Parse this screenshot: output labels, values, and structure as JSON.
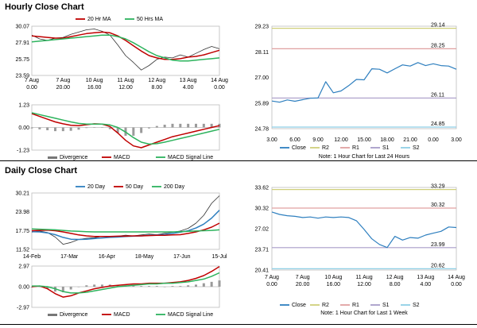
{
  "sections": {
    "hourly_title": "Hourly Close Chart",
    "daily_title": "Daily Close Chart"
  },
  "colors": {
    "price": "#333333",
    "ma_short": "#c00000",
    "ma_long": "#2db35d",
    "blue": "#2e7fbf",
    "r2": "#cfcf7a",
    "r1": "#e0a0a0",
    "s1": "#a89cc8",
    "s2": "#8ecfe6"
  },
  "chart_data": [
    {
      "id": "hourly_price",
      "type": "line",
      "x_labels": [
        [
          "7 Aug",
          "0.00"
        ],
        [
          "7 Aug",
          "20.00"
        ],
        [
          "10 Aug",
          "16.00"
        ],
        [
          "11 Aug",
          "12.00"
        ],
        [
          "12 Aug",
          "8.00"
        ],
        [
          "13 Aug",
          "4.00"
        ],
        [
          "14 Aug",
          "0.00"
        ]
      ],
      "y_ticks": [
        "30.07",
        "27.91",
        "25.75",
        "23.59"
      ],
      "ylim": [
        23.59,
        30.07
      ],
      "legend": [
        "20 Hr MA",
        "50 Hrs MA"
      ],
      "series": [
        {
          "name": "",
          "role": "price",
          "values": [
            28.9,
            28.4,
            28.2,
            28.5,
            28.6,
            29.0,
            29.3,
            29.6,
            29.7,
            29.4,
            28.9,
            27.6,
            26.2,
            25.3,
            24.3,
            24.9,
            25.7,
            26.0,
            25.9,
            26.3,
            26.0,
            26.5,
            27.0,
            27.4,
            27.1
          ]
        },
        {
          "name": "20 Hr MA",
          "role": "ma_short",
          "values": [
            28.8,
            28.7,
            28.6,
            28.5,
            28.5,
            28.7,
            28.9,
            29.1,
            29.2,
            29.3,
            29.2,
            28.8,
            28.2,
            27.5,
            26.8,
            26.2,
            25.9,
            25.7,
            25.7,
            25.8,
            26.0,
            26.1,
            26.3,
            26.6,
            26.9
          ]
        },
        {
          "name": "50 Hrs MA",
          "role": "ma_long",
          "values": [
            28.0,
            28.1,
            28.2,
            28.3,
            28.4,
            28.5,
            28.6,
            28.7,
            28.8,
            28.9,
            28.9,
            28.7,
            28.4,
            27.9,
            27.3,
            26.7,
            26.2,
            25.9,
            25.6,
            25.5,
            25.5,
            25.6,
            25.7,
            25.8,
            25.9
          ]
        }
      ]
    },
    {
      "id": "hourly_macd",
      "type": "line",
      "y_ticks": [
        "1.23",
        "0.00",
        "-1.23"
      ],
      "ylim": [
        -1.23,
        1.23
      ],
      "legend": [
        "Divergence",
        "MACD",
        "MACD Signal Line"
      ],
      "series": [
        {
          "name": "MACD",
          "role": "ma_short",
          "values": [
            0.75,
            0.6,
            0.45,
            0.3,
            0.2,
            0.12,
            0.1,
            0.15,
            0.2,
            0.18,
            0.05,
            -0.3,
            -0.7,
            -1.0,
            -1.1,
            -0.95,
            -0.8,
            -0.65,
            -0.5,
            -0.4,
            -0.3,
            -0.2,
            -0.1,
            0.0,
            0.1
          ]
        },
        {
          "name": "MACD Signal Line",
          "role": "ma_long",
          "values": [
            0.8,
            0.7,
            0.6,
            0.5,
            0.4,
            0.3,
            0.22,
            0.18,
            0.18,
            0.18,
            0.14,
            0.0,
            -0.25,
            -0.55,
            -0.8,
            -0.9,
            -0.88,
            -0.8,
            -0.7,
            -0.6,
            -0.5,
            -0.4,
            -0.3,
            -0.2,
            -0.1
          ]
        },
        {
          "name": "Divergence",
          "role": "bars",
          "values": [
            -0.05,
            -0.1,
            -0.15,
            -0.2,
            -0.2,
            -0.18,
            -0.12,
            -0.03,
            0.02,
            0.0,
            -0.09,
            -0.3,
            -0.45,
            -0.45,
            -0.3,
            -0.05,
            0.08,
            0.15,
            0.2,
            0.2,
            0.2,
            0.2,
            0.2,
            0.2,
            0.2
          ]
        }
      ]
    },
    {
      "id": "hourly_24h",
      "type": "line",
      "x_labels": [
        "3.00",
        "6.00",
        "9.00",
        "12.00",
        "15.00",
        "18.00",
        "21.00",
        "0.00",
        "3.00"
      ],
      "y_ticks": [
        "29.23",
        "28.11",
        "27.00",
        "25.89",
        "24.78"
      ],
      "ylim": [
        24.78,
        29.23
      ],
      "levels": [
        {
          "name": "R2",
          "value": 29.14,
          "label": "29.14",
          "role": "r2"
        },
        {
          "name": "R1",
          "value": 28.25,
          "label": "28.25",
          "role": "r1"
        },
        {
          "name": "S1",
          "value": 26.11,
          "label": "26.11",
          "role": "s1"
        },
        {
          "name": "S2",
          "value": 24.85,
          "label": "24.85",
          "role": "s2"
        }
      ],
      "legend": [
        "Close",
        "R2",
        "R1",
        "S1",
        "S2"
      ],
      "note": "Note: 1 Hour Chart for Last 24 Hours",
      "series": [
        {
          "name": "Close",
          "role": "blue",
          "values": [
            25.98,
            25.93,
            26.03,
            25.97,
            26.04,
            26.1,
            26.11,
            26.82,
            26.34,
            26.42,
            26.65,
            26.92,
            26.9,
            27.38,
            27.36,
            27.2,
            27.38,
            27.55,
            27.5,
            27.65,
            27.52,
            27.6,
            27.52,
            27.5,
            27.36
          ]
        }
      ]
    },
    {
      "id": "daily_price",
      "type": "line",
      "x_labels": [
        "14-Feb",
        "17-Mar",
        "16-Apr",
        "18-May",
        "17-Jun",
        "15-Jul"
      ],
      "y_ticks": [
        "30.21",
        "23.98",
        "17.75",
        "11.52"
      ],
      "ylim": [
        11.52,
        30.21
      ],
      "legend": [
        "20 Day",
        "50 Day",
        "200 Day"
      ],
      "series": [
        {
          "name": "",
          "role": "price",
          "values": [
            17.2,
            17.6,
            17.1,
            15.6,
            13.2,
            13.8,
            14.8,
            15.2,
            15.4,
            15.8,
            15.6,
            15.9,
            16.2,
            16.0,
            16.3,
            16.6,
            16.4,
            16.9,
            17.2,
            17.6,
            18.5,
            20.2,
            22.8,
            26.8,
            29.3
          ]
        },
        {
          "name": "20 Day",
          "role": "blue",
          "values": [
            17.4,
            17.3,
            17.0,
            16.4,
            15.5,
            14.9,
            14.8,
            14.9,
            15.1,
            15.3,
            15.5,
            15.6,
            15.8,
            15.9,
            16.0,
            16.2,
            16.3,
            16.5,
            16.8,
            17.2,
            17.7,
            18.6,
            19.9,
            21.9,
            24.5
          ]
        },
        {
          "name": "50 Day",
          "role": "ma_short",
          "values": [
            17.7,
            17.8,
            17.9,
            17.7,
            17.3,
            16.8,
            16.3,
            16.0,
            15.8,
            15.8,
            15.8,
            15.9,
            15.9,
            16.0,
            16.0,
            16.1,
            16.2,
            16.2,
            16.3,
            16.4,
            16.8,
            17.3,
            18.0,
            18.9,
            20.2
          ]
        },
        {
          "name": "200 Day",
          "role": "ma_long",
          "values": [
            18.3,
            18.2,
            18.1,
            18.0,
            17.8,
            17.6,
            17.5,
            17.4,
            17.3,
            17.3,
            17.3,
            17.3,
            17.3,
            17.3,
            17.3,
            17.3,
            17.3,
            17.3,
            17.3,
            17.4,
            17.5,
            17.6,
            17.7,
            17.8,
            18.0
          ]
        }
      ]
    },
    {
      "id": "daily_macd",
      "type": "line",
      "y_ticks": [
        "2.97",
        "0.00",
        "-2.97"
      ],
      "ylim": [
        -2.97,
        2.97
      ],
      "legend": [
        "Divergence",
        "MACD",
        "MACD Signal Line"
      ],
      "series": [
        {
          "name": "MACD",
          "role": "ma_short",
          "values": [
            0.0,
            0.1,
            -0.3,
            -1.0,
            -1.5,
            -1.3,
            -0.9,
            -0.6,
            -0.3,
            -0.1,
            0.1,
            0.2,
            0.3,
            0.4,
            0.4,
            0.5,
            0.5,
            0.5,
            0.6,
            0.7,
            0.9,
            1.2,
            1.6,
            2.2,
            2.9
          ]
        },
        {
          "name": "MACD Signal Line",
          "role": "ma_long",
          "values": [
            0.1,
            0.1,
            0.0,
            -0.3,
            -0.7,
            -0.9,
            -0.9,
            -0.8,
            -0.6,
            -0.4,
            -0.2,
            0.0,
            0.1,
            0.2,
            0.3,
            0.4,
            0.4,
            0.5,
            0.5,
            0.6,
            0.7,
            0.9,
            1.1,
            1.5,
            2.0
          ]
        },
        {
          "name": "Divergence",
          "role": "bars",
          "values": [
            -0.1,
            0.0,
            -0.3,
            -0.7,
            -0.8,
            -0.4,
            0.0,
            0.2,
            0.3,
            0.3,
            0.3,
            0.2,
            0.2,
            0.2,
            0.1,
            0.1,
            0.1,
            0.0,
            0.1,
            0.1,
            0.2,
            0.3,
            0.5,
            0.7,
            0.9
          ]
        }
      ]
    },
    {
      "id": "daily_week",
      "type": "line",
      "x_labels": [
        [
          "7 Aug",
          "0.00"
        ],
        [
          "7 Aug",
          "20.00"
        ],
        [
          "10 Aug",
          "16.00"
        ],
        [
          "11 Aug",
          "12.00"
        ],
        [
          "12 Aug",
          "8.00"
        ],
        [
          "13 Aug",
          "4.00"
        ],
        [
          "14 Aug",
          "0.00"
        ]
      ],
      "y_ticks": [
        "33.62",
        "30.32",
        "27.02",
        "23.71",
        "20.41"
      ],
      "ylim": [
        20.41,
        33.62
      ],
      "levels": [
        {
          "name": "R2",
          "value": 33.29,
          "label": "33.29",
          "role": "r2"
        },
        {
          "name": "R1",
          "value": 30.32,
          "label": "30.32",
          "role": "r1"
        },
        {
          "name": "S1",
          "value": 23.99,
          "label": "23.99",
          "role": "s1"
        },
        {
          "name": "S2",
          "value": 20.62,
          "label": "20.62",
          "role": "s2"
        }
      ],
      "legend": [
        "Close",
        "R2",
        "R1",
        "S1",
        "S2"
      ],
      "note": "Note: 1 Hour Chart for Last 1 Week",
      "series": [
        {
          "name": "Close",
          "role": "blue",
          "values": [
            29.7,
            29.3,
            29.1,
            29.0,
            28.8,
            28.9,
            28.7,
            28.9,
            28.8,
            28.9,
            28.8,
            28.3,
            26.9,
            25.4,
            24.5,
            24.0,
            25.8,
            25.2,
            25.6,
            25.5,
            26.0,
            26.3,
            26.6,
            27.3,
            27.2
          ]
        }
      ]
    }
  ]
}
